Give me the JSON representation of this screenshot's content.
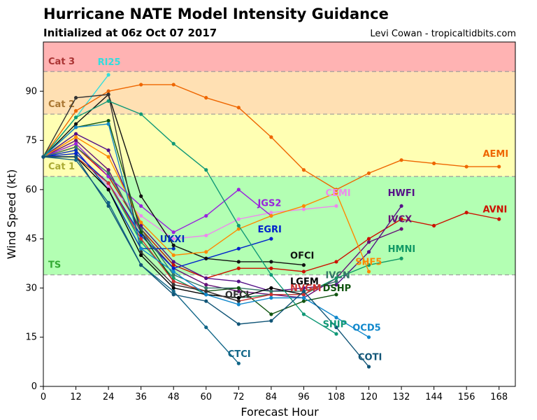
{
  "header": {
    "title": "Hurricane NATE Model Intensity Guidance",
    "subtitle": "Initialized at 06z Oct 07 2017",
    "credit": "Levi Cowan - tropicaltidbits.com"
  },
  "chart_data": {
    "type": "line",
    "xlabel": "Forecast Hour",
    "ylabel": "Wind Speed (kt)",
    "xlim": [
      0,
      174
    ],
    "ylim": [
      0,
      105
    ],
    "xticks": [
      0,
      12,
      24,
      36,
      48,
      60,
      72,
      84,
      96,
      108,
      120,
      132,
      144,
      156,
      168
    ],
    "yticks": [
      0,
      15,
      30,
      45,
      60,
      75,
      90
    ],
    "bands": [
      {
        "label": "TS",
        "from": 34,
        "to": 64,
        "color": "#b3ffb3",
        "label_color": "#33aa33"
      },
      {
        "label": "Cat 1",
        "from": 64,
        "to": 83,
        "color": "#ffffb3",
        "label_color": "#aaaa33"
      },
      {
        "label": "Cat 2",
        "from": 83,
        "to": 96,
        "color": "#ffe0b3",
        "label_color": "#aa7733"
      },
      {
        "label": "Cat 3",
        "from": 96,
        "to": 105,
        "color": "#ffb3b3",
        "label_color": "#aa3333"
      }
    ],
    "series": [
      {
        "name": "RI25",
        "color": "#33dddd",
        "x": [
          0,
          12,
          24
        ],
        "y": [
          70,
          82,
          95
        ],
        "label_at": [
          20,
          98
        ]
      },
      {
        "name": "AEMI",
        "color": "#ee6600",
        "x": [
          0,
          12,
          24,
          36,
          48,
          60,
          72,
          84,
          96,
          108,
          120,
          132,
          144,
          156,
          168
        ],
        "y": [
          70,
          84,
          90,
          92,
          92,
          88,
          85,
          76,
          66,
          60,
          65,
          69,
          68,
          67,
          67
        ],
        "label_at": [
          162,
          70
        ]
      },
      {
        "name": "AVNI",
        "color": "#cc1100",
        "x": [
          0,
          12,
          24,
          36,
          48,
          60,
          72,
          84,
          96,
          108,
          120,
          132,
          144,
          156,
          168
        ],
        "y": [
          70,
          73,
          64,
          48,
          37,
          33,
          36,
          36,
          35,
          38,
          45,
          51,
          49,
          53,
          51
        ],
        "label_at": [
          162,
          53
        ]
      },
      {
        "name": "HWFI",
        "color": "#551188",
        "x": [
          0,
          12,
          24,
          36,
          48,
          60,
          72,
          84,
          96,
          108,
          120,
          132
        ],
        "y": [
          70,
          77,
          72,
          49,
          38,
          33,
          32,
          29,
          30,
          31,
          41,
          55
        ],
        "label_at": [
          127,
          58
        ]
      },
      {
        "name": "IVCX",
        "color": "#661177",
        "x": [
          0,
          12,
          24,
          36,
          48,
          60,
          72,
          84,
          96,
          108,
          120,
          132
        ],
        "y": [
          70,
          75,
          66,
          47,
          36,
          31,
          29,
          28,
          27,
          33,
          44,
          48
        ],
        "label_at": [
          127,
          50
        ]
      },
      {
        "name": "HMNI",
        "color": "#119966",
        "x": [
          0,
          12,
          24,
          36,
          48,
          60,
          72,
          84,
          96,
          108,
          120,
          132
        ],
        "y": [
          70,
          70,
          62,
          44,
          33,
          28,
          27,
          28,
          28,
          33,
          37,
          39
        ],
        "label_at": [
          127,
          41
        ]
      },
      {
        "name": "CEMI",
        "color": "#ee88ee",
        "x": [
          0,
          12,
          24,
          36,
          48,
          60,
          72,
          84,
          96,
          108
        ],
        "y": [
          70,
          72,
          61,
          52,
          45,
          46,
          51,
          53,
          54,
          55
        ],
        "label_at": [
          104,
          58
        ]
      },
      {
        "name": "JGS2",
        "color": "#9922dd",
        "x": [
          0,
          12,
          24,
          36,
          48,
          60,
          72,
          84
        ],
        "y": [
          70,
          74,
          64,
          55,
          47,
          52,
          60,
          52
        ],
        "label_at": [
          79,
          55
        ]
      },
      {
        "name": "EGRI",
        "color": "#0022cc",
        "x": [
          0,
          12,
          24,
          36,
          48,
          60,
          72,
          84
        ],
        "y": [
          70,
          71,
          62,
          46,
          36,
          39,
          42,
          45
        ],
        "label_at": [
          79,
          47
        ]
      },
      {
        "name": "UKXI",
        "color": "#0033bb",
        "x": [
          0,
          12,
          24,
          36,
          48
        ],
        "y": [
          70,
          72,
          60,
          42,
          42
        ],
        "label_at": [
          43,
          44
        ]
      },
      {
        "name": "OFCI",
        "color": "#111111",
        "x": [
          0,
          12,
          24,
          36,
          48,
          60,
          72,
          84,
          96
        ],
        "y": [
          70,
          80,
          89,
          58,
          43,
          39,
          38,
          38,
          37
        ],
        "label_at": [
          91,
          39
        ]
      },
      {
        "name": "SHF5",
        "color": "#ff8800",
        "x": [
          0,
          12,
          24,
          36,
          48,
          60,
          72,
          84,
          96,
          108,
          120
        ],
        "y": [
          70,
          76,
          70,
          50,
          40,
          41,
          48,
          52,
          55,
          59,
          35
        ],
        "label_at": [
          115,
          37
        ]
      },
      {
        "name": "IVCN",
        "color": "#337766",
        "x": [
          0,
          12,
          24,
          36,
          48,
          60,
          72,
          84,
          96,
          108
        ],
        "y": [
          70,
          73,
          65,
          48,
          34,
          30,
          30,
          29,
          29,
          32
        ],
        "label_at": [
          104,
          33
        ]
      },
      {
        "name": "LGEM",
        "color": "#000000",
        "x": [
          0,
          12,
          24,
          36,
          48,
          60,
          72,
          84,
          96
        ],
        "y": [
          70,
          70,
          60,
          40,
          30,
          28,
          27,
          30,
          28
        ],
        "label_at": [
          91,
          31
        ]
      },
      {
        "name": "DSHP",
        "color": "#115511",
        "x": [
          0,
          12,
          24,
          36,
          48,
          60,
          72,
          84,
          96,
          108
        ],
        "y": [
          70,
          79,
          81,
          47,
          32,
          29,
          30,
          22,
          26,
          28
        ],
        "label_at": [
          103,
          29
        ]
      },
      {
        "name": "NVGM",
        "color": "#cc3333",
        "x": [
          0,
          12,
          24,
          36,
          48,
          60,
          72,
          84,
          96,
          100
        ],
        "y": [
          70,
          70,
          62,
          45,
          32,
          29,
          26,
          28,
          28,
          30
        ],
        "label_at": [
          91,
          29
        ]
      },
      {
        "name": "OFCL",
        "color": "#333333",
        "x": [
          0,
          12,
          24,
          36,
          48,
          60,
          72
        ],
        "y": [
          70,
          88,
          89,
          41,
          31,
          29,
          26
        ],
        "label_at": [
          67,
          27
        ]
      },
      {
        "name": "OCD5",
        "color": "#1188cc",
        "x": [
          0,
          12,
          24,
          36,
          48,
          60,
          72,
          84,
          96,
          108,
          120
        ],
        "y": [
          70,
          79,
          80,
          42,
          35,
          28,
          25,
          27,
          27,
          21,
          15
        ],
        "label_at": [
          114,
          17
        ]
      },
      {
        "name": "SHIP",
        "color": "#119977",
        "x": [
          0,
          12,
          24,
          36,
          48,
          60,
          72,
          84,
          96,
          108
        ],
        "y": [
          70,
          82,
          87,
          83,
          74,
          66,
          49,
          34,
          22,
          16
        ],
        "label_at": [
          103,
          18
        ]
      },
      {
        "name": "CTCI",
        "color": "#116688",
        "x": [
          0,
          12,
          24,
          36,
          48,
          60,
          72
        ],
        "y": [
          70,
          69,
          56,
          37,
          29,
          18,
          7
        ],
        "label_at": [
          68,
          9
        ]
      },
      {
        "name": "COTI",
        "color": "#115577",
        "x": [
          0,
          12,
          24,
          36,
          48,
          60,
          72,
          84,
          96,
          108,
          120
        ],
        "y": [
          70,
          70,
          55,
          37,
          28,
          26,
          19,
          20,
          29,
          18,
          6
        ],
        "label_at": [
          116,
          8
        ]
      }
    ]
  }
}
